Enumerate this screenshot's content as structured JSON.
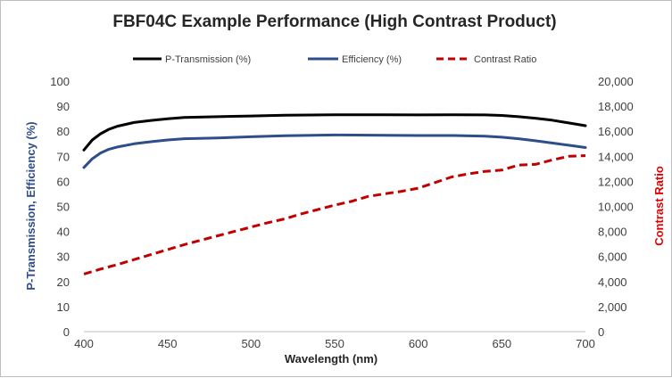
{
  "chart_data": {
    "type": "line",
    "title": "FBF04C Example Performance (High Contrast Product)",
    "xlabel": "Wavelength (nm)",
    "ylabel": "P-Transmission, Efficiency (%)",
    "y2label": "Contrast Ratio",
    "xlim": [
      400,
      700
    ],
    "ylim": [
      0,
      100
    ],
    "y2lim": [
      0,
      20000
    ],
    "x_ticks": [
      "400",
      "450",
      "500",
      "550",
      "600",
      "650",
      "700"
    ],
    "y_ticks": [
      "0",
      "10",
      "20",
      "30",
      "40",
      "50",
      "60",
      "70",
      "80",
      "90",
      "100"
    ],
    "y2_ticks": [
      "0",
      "2,000",
      "4,000",
      "6,000",
      "8,000",
      "10,000",
      "12,000",
      "14,000",
      "16,000",
      "18,000",
      "20,000"
    ],
    "grid": false,
    "legend_position": "top",
    "series": [
      {
        "name": "P-Transmission (%)",
        "axis": "left",
        "color": "#000000",
        "style": "solid",
        "points": [
          [
            400,
            72.5
          ],
          [
            405,
            76.5
          ],
          [
            410,
            79
          ],
          [
            415,
            80.8
          ],
          [
            420,
            82
          ],
          [
            430,
            83.5
          ],
          [
            440,
            84.3
          ],
          [
            450,
            85
          ],
          [
            460,
            85.5
          ],
          [
            480,
            85.8
          ],
          [
            500,
            86.1
          ],
          [
            520,
            86.4
          ],
          [
            550,
            86.6
          ],
          [
            580,
            86.6
          ],
          [
            600,
            86.5
          ],
          [
            620,
            86.6
          ],
          [
            640,
            86.5
          ],
          [
            650,
            86.3
          ],
          [
            660,
            85.8
          ],
          [
            670,
            85.2
          ],
          [
            680,
            84.4
          ],
          [
            690,
            83.3
          ],
          [
            700,
            82.2
          ]
        ]
      },
      {
        "name": "Efficiency (%)",
        "axis": "left",
        "color": "#2e4d8a",
        "style": "solid",
        "points": [
          [
            400,
            65.5
          ],
          [
            405,
            69
          ],
          [
            410,
            71.3
          ],
          [
            415,
            72.8
          ],
          [
            420,
            73.7
          ],
          [
            430,
            75
          ],
          [
            440,
            75.8
          ],
          [
            450,
            76.5
          ],
          [
            460,
            77
          ],
          [
            480,
            77.3
          ],
          [
            500,
            77.8
          ],
          [
            520,
            78.2
          ],
          [
            550,
            78.5
          ],
          [
            580,
            78.4
          ],
          [
            600,
            78.3
          ],
          [
            620,
            78.3
          ],
          [
            640,
            78
          ],
          [
            650,
            77.6
          ],
          [
            660,
            77
          ],
          [
            670,
            76.2
          ],
          [
            680,
            75.3
          ],
          [
            690,
            74.4
          ],
          [
            700,
            73.5
          ]
        ]
      },
      {
        "name": "Contrast Ratio",
        "axis": "right",
        "color": "#c00000",
        "style": "dashed",
        "points": [
          [
            400,
            4600
          ],
          [
            410,
            5000
          ],
          [
            420,
            5350
          ],
          [
            430,
            5750
          ],
          [
            440,
            6150
          ],
          [
            450,
            6550
          ],
          [
            460,
            6950
          ],
          [
            470,
            7300
          ],
          [
            480,
            7650
          ],
          [
            490,
            8000
          ],
          [
            500,
            8350
          ],
          [
            510,
            8700
          ],
          [
            520,
            9000
          ],
          [
            530,
            9400
          ],
          [
            540,
            9750
          ],
          [
            550,
            10100
          ],
          [
            560,
            10400
          ],
          [
            570,
            10800
          ],
          [
            580,
            11000
          ],
          [
            590,
            11200
          ],
          [
            600,
            11450
          ],
          [
            610,
            11900
          ],
          [
            620,
            12350
          ],
          [
            630,
            12600
          ],
          [
            640,
            12800
          ],
          [
            650,
            12900
          ],
          [
            660,
            13300
          ],
          [
            670,
            13350
          ],
          [
            680,
            13700
          ],
          [
            690,
            14000
          ],
          [
            700,
            14050
          ]
        ]
      }
    ]
  }
}
